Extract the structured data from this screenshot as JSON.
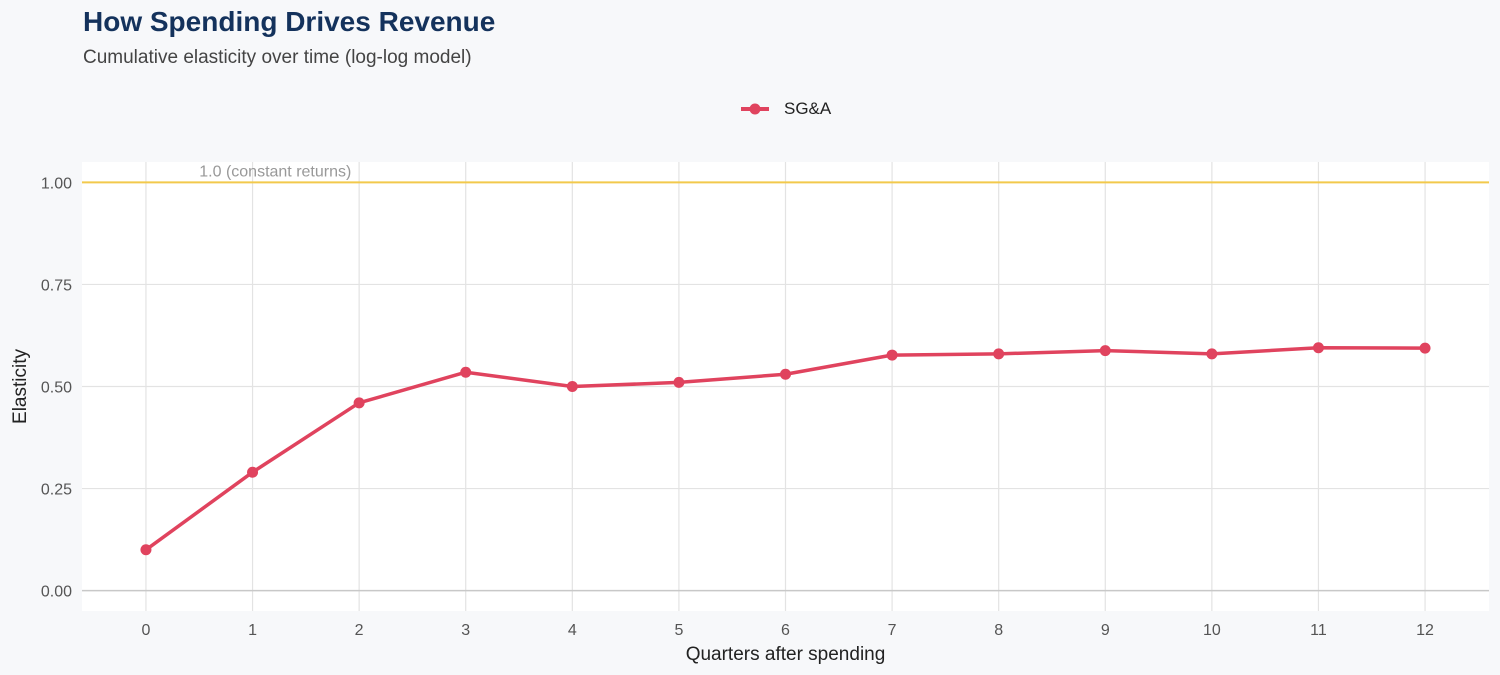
{
  "chart_data": {
    "type": "line",
    "title": "How Spending Drives Revenue",
    "subtitle": "Cumulative elasticity over time (log-log model)",
    "xlabel": "Quarters after spending",
    "ylabel": "Elasticity",
    "x": [
      0,
      1,
      2,
      3,
      4,
      5,
      6,
      7,
      8,
      9,
      10,
      11,
      12
    ],
    "series": [
      {
        "name": "SG&A",
        "color": "#e0435e",
        "values": [
          0.1,
          0.29,
          0.46,
          0.535,
          0.5,
          0.51,
          0.53,
          0.577,
          0.58,
          0.588,
          0.58,
          0.595,
          0.594
        ]
      }
    ],
    "xlim": [
      -0.6,
      12.6
    ],
    "ylim": [
      -0.05,
      1.05
    ],
    "y_ticks": [
      0.0,
      0.25,
      0.5,
      0.75,
      1.0
    ],
    "y_tick_labels": [
      "0.00",
      "0.25",
      "0.50",
      "0.75",
      "1.00"
    ],
    "x_ticks": [
      0,
      1,
      2,
      3,
      4,
      5,
      6,
      7,
      8,
      9,
      10,
      11,
      12
    ],
    "x_tick_labels": [
      "0",
      "1",
      "2",
      "3",
      "4",
      "5",
      "6",
      "7",
      "8",
      "9",
      "10",
      "11",
      "12"
    ],
    "reference_line": {
      "y": 1.0,
      "label": "1.0 (constant returns)",
      "color": "#f2c94c"
    },
    "legend_position": "top-center",
    "grid": true
  }
}
